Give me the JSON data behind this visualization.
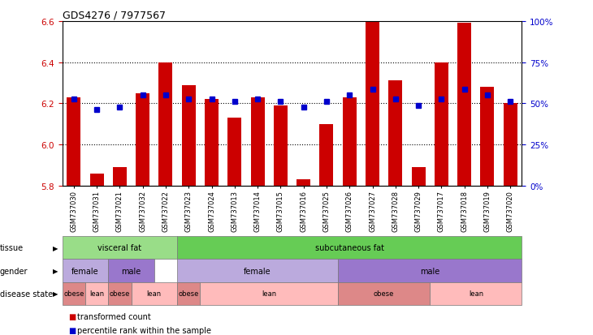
{
  "title": "GDS4276 / 7977567",
  "samples": [
    "GSM737030",
    "GSM737031",
    "GSM737021",
    "GSM737032",
    "GSM737022",
    "GSM737023",
    "GSM737024",
    "GSM737013",
    "GSM737014",
    "GSM737015",
    "GSM737016",
    "GSM737025",
    "GSM737026",
    "GSM737027",
    "GSM737028",
    "GSM737029",
    "GSM737017",
    "GSM737018",
    "GSM737019",
    "GSM737020"
  ],
  "bar_values": [
    6.23,
    5.86,
    5.89,
    6.25,
    6.4,
    6.29,
    6.22,
    6.13,
    6.23,
    6.19,
    5.83,
    6.1,
    6.23,
    6.6,
    6.31,
    5.89,
    6.4,
    6.59,
    6.28,
    6.2
  ],
  "dot_values": [
    6.22,
    6.17,
    6.18,
    6.24,
    6.24,
    6.22,
    6.22,
    6.21,
    6.22,
    6.21,
    6.18,
    6.21,
    6.24,
    6.27,
    6.22,
    6.19,
    6.22,
    6.27,
    6.24,
    6.21
  ],
  "ymin": 5.8,
  "ymax": 6.6,
  "yticks": [
    5.8,
    6.0,
    6.2,
    6.4,
    6.6
  ],
  "right_yticks": [
    0,
    25,
    50,
    75,
    100
  ],
  "right_yticklabels": [
    "0%",
    "25%",
    "50%",
    "75%",
    "100%"
  ],
  "bar_color": "#cc0000",
  "dot_color": "#0000cc",
  "tissue_groups": [
    {
      "label": "visceral fat",
      "start": 0,
      "end": 4,
      "color": "#99dd88"
    },
    {
      "label": "subcutaneous fat",
      "start": 5,
      "end": 19,
      "color": "#66cc55"
    }
  ],
  "gender_groups": [
    {
      "label": "female",
      "start": 0,
      "end": 1,
      "color": "#bbaadd"
    },
    {
      "label": "male",
      "start": 2,
      "end": 3,
      "color": "#9977cc"
    },
    {
      "label": "female",
      "start": 5,
      "end": 11,
      "color": "#bbaadd"
    },
    {
      "label": "male",
      "start": 12,
      "end": 19,
      "color": "#9977cc"
    }
  ],
  "disease_groups": [
    {
      "label": "obese",
      "start": 0,
      "end": 0,
      "color": "#dd8888"
    },
    {
      "label": "lean",
      "start": 1,
      "end": 1,
      "color": "#ffbbbb"
    },
    {
      "label": "obese",
      "start": 2,
      "end": 2,
      "color": "#dd8888"
    },
    {
      "label": "lean",
      "start": 3,
      "end": 4,
      "color": "#ffbbbb"
    },
    {
      "label": "obese",
      "start": 5,
      "end": 5,
      "color": "#dd8888"
    },
    {
      "label": "lean",
      "start": 6,
      "end": 11,
      "color": "#ffbbbb"
    },
    {
      "label": "obese",
      "start": 12,
      "end": 15,
      "color": "#dd8888"
    },
    {
      "label": "lean",
      "start": 16,
      "end": 19,
      "color": "#ffbbbb"
    }
  ],
  "legend_labels": [
    "transformed count",
    "percentile rank within the sample"
  ],
  "legend_colors": [
    "#cc0000",
    "#0000cc"
  ]
}
